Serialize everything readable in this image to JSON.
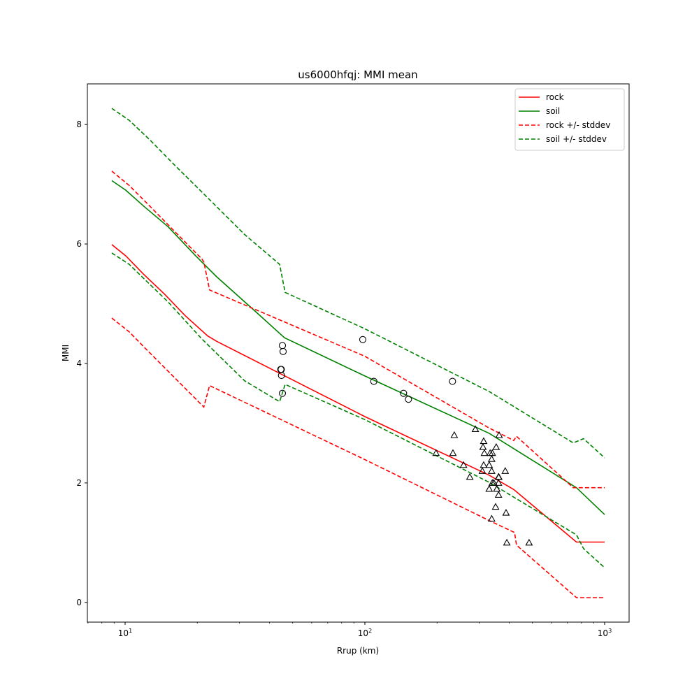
{
  "chart_data": {
    "type": "line",
    "title": "us6000hfqj: MMI mean",
    "xlabel": "Rrup (km)",
    "ylabel": "MMI",
    "xscale": "log",
    "xlim": [
      6.96,
      1265
    ],
    "ylim": [
      -0.33,
      8.68
    ],
    "xticks": [
      {
        "value": 10,
        "base": "10",
        "exp": "1"
      },
      {
        "value": 100,
        "base": "10",
        "exp": "2"
      },
      {
        "value": 1000,
        "base": "10",
        "exp": "3"
      }
    ],
    "yticks": [
      {
        "value": 0,
        "label": "0"
      },
      {
        "value": 2,
        "label": "2"
      },
      {
        "value": 4,
        "label": "4"
      },
      {
        "value": 6,
        "label": "6"
      },
      {
        "value": 8,
        "label": "8"
      }
    ],
    "grid": false,
    "legend_position": "top-right",
    "series": [
      {
        "name": "rock",
        "color": "#ff0000",
        "dash": false,
        "x": [
          8.8,
          10.07,
          11.9,
          14.6,
          17.8,
          22.1,
          24.1,
          100,
          330,
          418,
          763,
          1000
        ],
        "y": [
          5.99,
          5.8,
          5.5,
          5.16,
          4.8,
          4.46,
          4.37,
          3.11,
          2.13,
          1.89,
          1.01,
          1.01
        ]
      },
      {
        "name": "soil",
        "color": "#008000",
        "dash": false,
        "x": [
          8.8,
          10.07,
          11.9,
          15.1,
          19.7,
          24.1,
          36.1,
          46.2,
          100,
          330,
          763,
          1000
        ],
        "y": [
          7.06,
          6.9,
          6.64,
          6.29,
          5.8,
          5.45,
          4.82,
          4.43,
          3.79,
          2.83,
          1.92,
          1.47
        ]
      },
      {
        "name": "rock +/- stddev",
        "color": "#ff0000",
        "dash": true,
        "x": [
          8.8,
          10.4,
          12.7,
          16.0,
          20.9,
          21.3,
          22.5,
          100,
          330,
          418,
          429,
          740,
          1000
        ],
        "y": [
          7.22,
          6.98,
          6.63,
          6.22,
          5.75,
          5.7,
          5.23,
          4.12,
          2.92,
          2.71,
          2.78,
          1.92,
          1.92
        ]
      },
      {
        "name": "",
        "color": "#ff0000",
        "dash": true,
        "x": [
          8.8,
          10.4,
          12.3,
          16.0,
          21.3,
          22.5,
          100,
          330,
          421,
          429,
          763,
          1000
        ],
        "y": [
          4.76,
          4.53,
          4.23,
          3.77,
          3.27,
          3.63,
          2.39,
          1.37,
          1.17,
          0.96,
          0.08,
          0.08
        ]
      },
      {
        "name": "soil +/- stddev",
        "color": "#008000",
        "dash": true,
        "x": [
          8.8,
          10.4,
          12.7,
          16.0,
          20.9,
          31.5,
          44.1,
          46.5,
          100,
          330,
          740,
          817,
          1000
        ],
        "y": [
          8.27,
          8.07,
          7.74,
          7.33,
          6.87,
          6.16,
          5.66,
          5.19,
          4.58,
          3.53,
          2.67,
          2.74,
          2.42
        ]
      },
      {
        "name": "",
        "color": "#008000",
        "dash": true,
        "x": [
          8.8,
          10.4,
          11.9,
          15.1,
          20.9,
          31.5,
          44.1,
          46.5,
          100,
          330,
          763,
          817,
          1000
        ],
        "y": [
          5.85,
          5.66,
          5.43,
          5.03,
          4.41,
          3.71,
          3.36,
          3.65,
          3.06,
          2.01,
          1.13,
          0.9,
          0.58
        ]
      }
    ],
    "circles": {
      "x": [
        45.3,
        45.6,
        44.6,
        44.8,
        44.9,
        45.3,
        98,
        109,
        145,
        152,
        232
      ],
      "y": [
        4.3,
        4.2,
        3.9,
        3.9,
        3.8,
        3.5,
        4.4,
        3.7,
        3.5,
        3.4,
        3.7
      ]
    },
    "triangles": {
      "x": [
        236,
        289,
        363,
        198,
        233,
        313,
        311,
        353,
        315,
        333,
        340,
        338,
        258,
        313,
        330,
        309,
        338,
        385,
        274,
        361,
        362,
        340,
        345,
        361,
        330,
        355,
        361,
        351,
        388,
        338,
        391,
        484
      ],
      "y": [
        2.8,
        2.9,
        2.8,
        2.5,
        2.5,
        2.7,
        2.6,
        2.6,
        2.5,
        2.5,
        2.5,
        2.4,
        2.3,
        2.3,
        2.3,
        2.2,
        2.2,
        2.2,
        2.1,
        2.1,
        2.1,
        2.0,
        2.0,
        2.0,
        1.9,
        1.9,
        1.8,
        1.6,
        1.5,
        1.4,
        1.0,
        1.0
      ]
    }
  }
}
